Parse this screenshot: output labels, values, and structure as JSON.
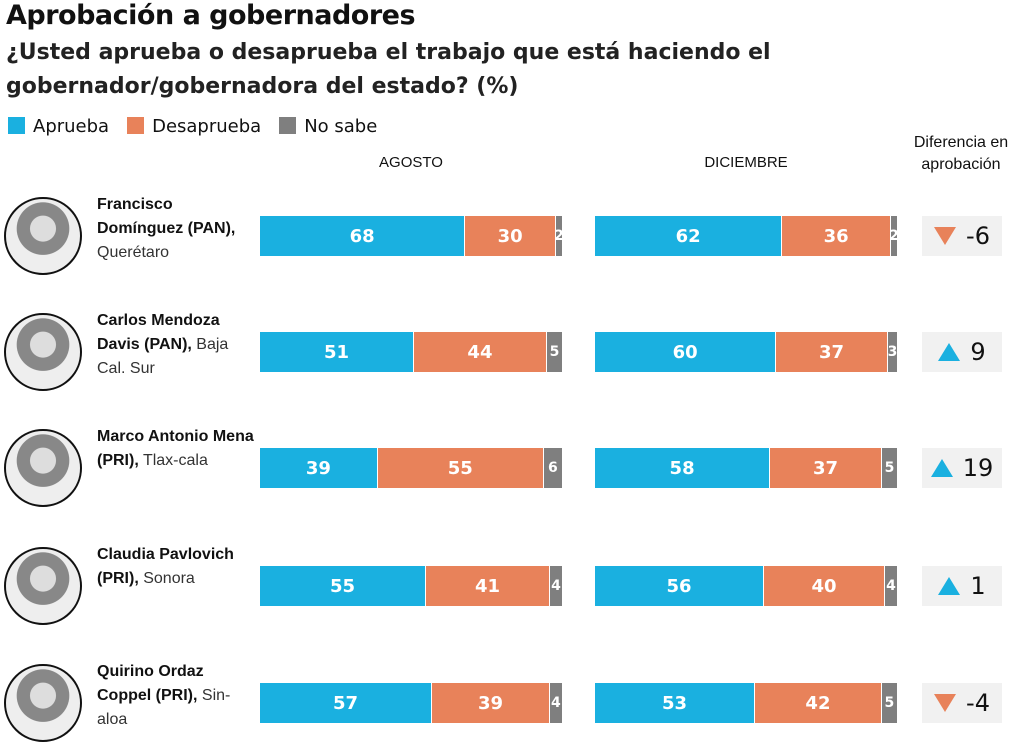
{
  "chart_data": {
    "type": "bar",
    "stacked": true,
    "orientation": "horizontal",
    "title": "Aprobación a gobernadores",
    "subtitle": "¿Usted aprueba o desaprueba el trabajo que está haciendo el gobernador/gobernadora del estado? (%)",
    "legend": [
      {
        "name": "Aprueba",
        "color": "#1ab0e0"
      },
      {
        "name": "Desaprueba",
        "color": "#e8825a"
      },
      {
        "name": "No sabe",
        "color": "#7f7f7f"
      }
    ],
    "legend_position": "top-left",
    "periods": [
      "AGOSTO",
      "DICIEMBRE"
    ],
    "diff_header": "Diferencia en aprobación",
    "rows": [
      {
        "name_bold": "Francisco Domínguez (PAN),",
        "state": "Querétaro",
        "agosto": [
          68,
          30,
          2
        ],
        "diciembre": [
          62,
          36,
          2
        ],
        "diff": "-6",
        "trend": "down"
      },
      {
        "name_bold": "Carlos Mendoza Davis (PAN),",
        "state": "Baja Cal. Sur",
        "agosto": [
          51,
          44,
          5
        ],
        "diciembre": [
          60,
          37,
          3
        ],
        "diff": "9",
        "trend": "up"
      },
      {
        "name_bold": "Marco Antonio Mena (PRI),",
        "state": "Tlax-cala",
        "agosto": [
          39,
          55,
          6
        ],
        "diciembre": [
          58,
          37,
          5
        ],
        "diff": "19",
        "trend": "up"
      },
      {
        "name_bold": "Claudia Pavlovich (PRI),",
        "state": "Sonora",
        "agosto": [
          55,
          41,
          4
        ],
        "diciembre": [
          56,
          40,
          4
        ],
        "diff": "1",
        "trend": "up"
      },
      {
        "name_bold": "Quirino Ordaz Coppel (PRI),",
        "state": "Sin-aloa",
        "agosto": [
          57,
          39,
          4
        ],
        "diciembre": [
          53,
          42,
          5
        ],
        "diff": "-4",
        "trend": "down"
      }
    ]
  }
}
